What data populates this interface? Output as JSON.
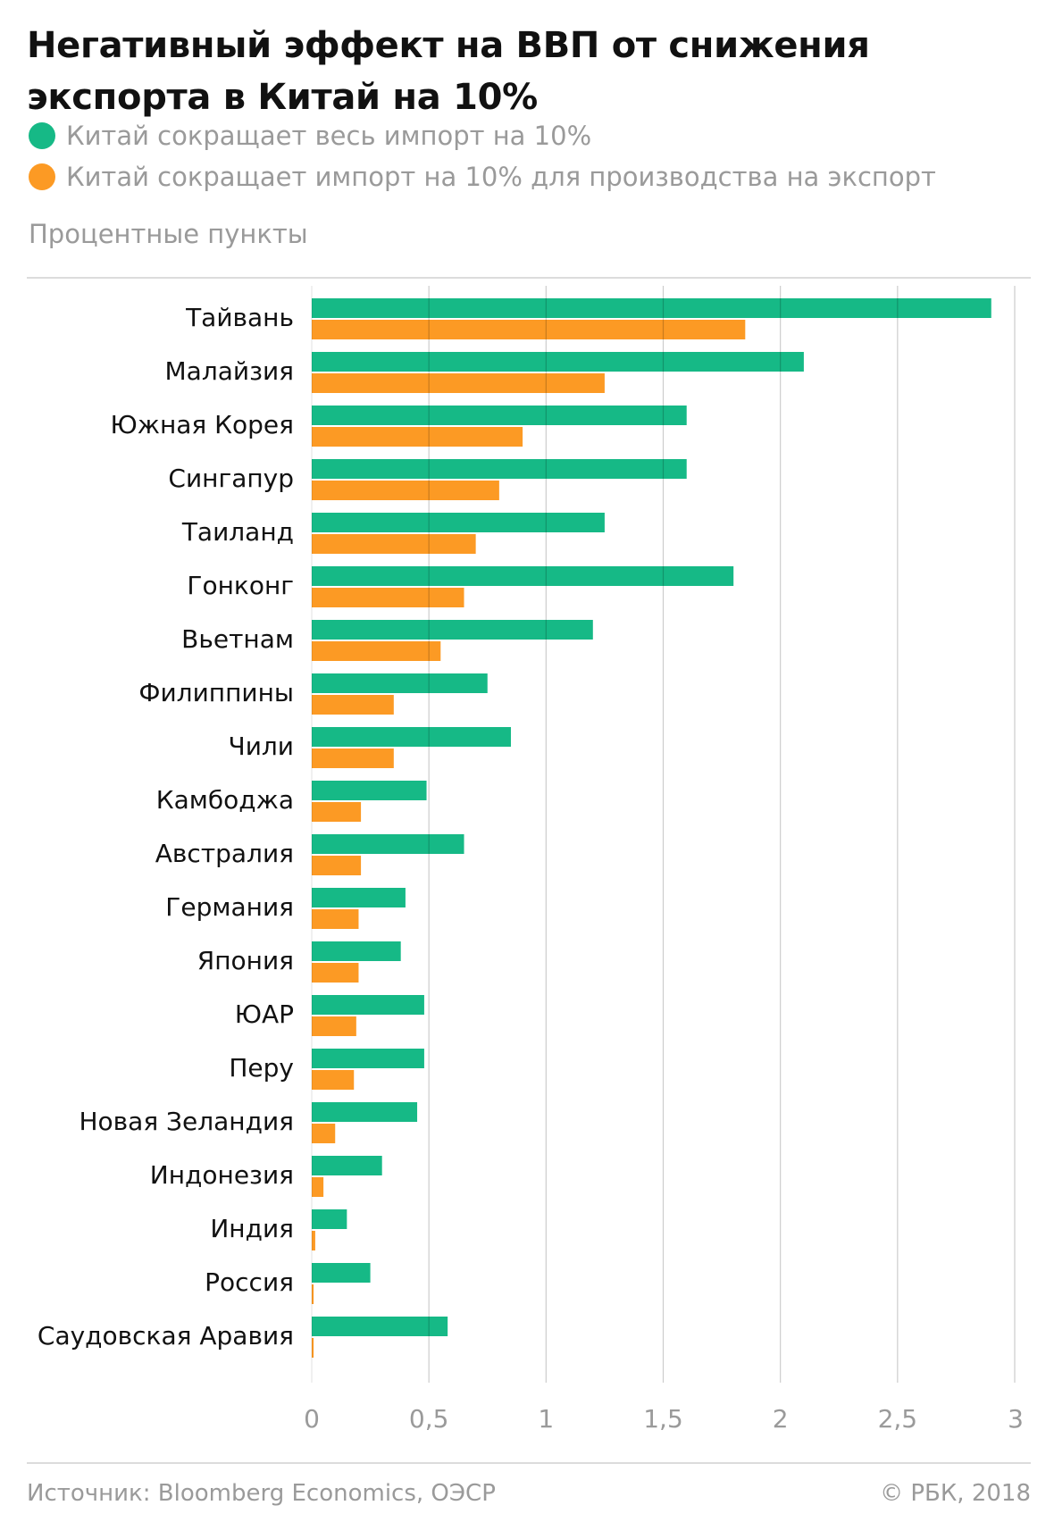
{
  "header": {
    "title": "Негативный эффект на ВВП от снижения экспорта в Китай на 10%",
    "unit_label": "Процентные пункты"
  },
  "legend": [
    {
      "label": "Китай сокращает весь импорт на 10%",
      "color": "#16b986"
    },
    {
      "label": "Китай сокращает импорт на 10% для производства на экспорт",
      "color": "#fc9a24"
    }
  ],
  "footer": {
    "source": "Источник: Bloomberg Economics, ОЭСР",
    "copyright": "© РБК, 2018"
  },
  "chart_data": {
    "type": "bar",
    "orientation": "horizontal",
    "categories": [
      "Тайвань",
      "Малайзия",
      "Южная Корея",
      "Сингапур",
      "Таиланд",
      "Гонконг",
      "Вьетнам",
      "Филиппины",
      "Чили",
      "Камбоджа",
      "Австралия",
      "Германия",
      "Япония",
      "ЮАР",
      "Перу",
      "Новая Зеландия",
      "Индонезия",
      "Индия",
      "Россия",
      "Саудовская Аравия"
    ],
    "series": [
      {
        "name": "Китай сокращает весь импорт на 10%",
        "color": "#16b986",
        "values": [
          2.9,
          2.1,
          1.6,
          1.6,
          1.25,
          1.8,
          1.2,
          0.75,
          0.85,
          0.49,
          0.65,
          0.4,
          0.38,
          0.48,
          0.48,
          0.45,
          0.3,
          0.15,
          0.25,
          0.58
        ]
      },
      {
        "name": "Китай сокращает импорт на 10% для производства на экспорт",
        "color": "#fc9a24",
        "values": [
          1.85,
          1.25,
          0.9,
          0.8,
          0.7,
          0.65,
          0.55,
          0.35,
          0.35,
          0.21,
          0.21,
          0.2,
          0.2,
          0.19,
          0.18,
          0.1,
          0.05,
          0.015,
          0.008,
          0.008
        ]
      }
    ],
    "xlim": [
      0,
      3
    ],
    "xticks": [
      0,
      0.5,
      1,
      1.5,
      2,
      2.5,
      3
    ],
    "xtick_labels": [
      "0",
      "0,5",
      "1",
      "1,5",
      "2",
      "2,5",
      "3"
    ],
    "grid": true,
    "legend_position": "top-left"
  }
}
